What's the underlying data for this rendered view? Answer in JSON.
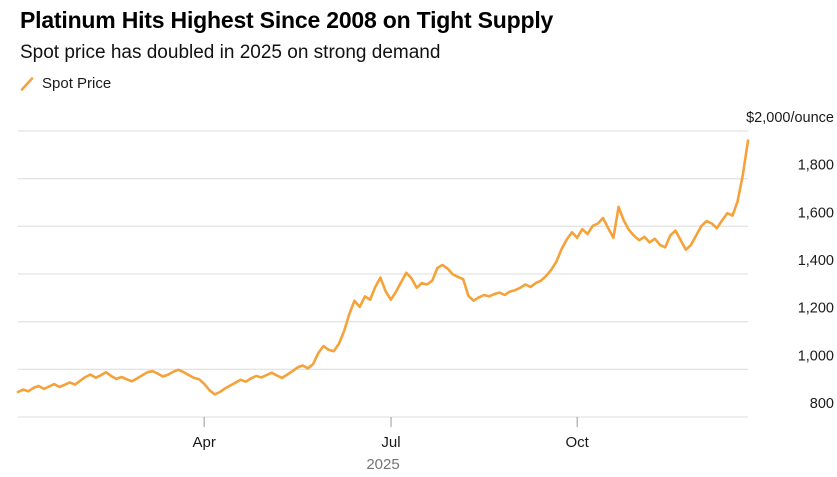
{
  "header": {
    "title": "Platinum Hits Highest Since 2008 on Tight Supply",
    "subtitle": "Spot price has doubled in 2025 on strong demand"
  },
  "legend": {
    "label": "Spot Price"
  },
  "colors": {
    "line": "#F5A23B",
    "grid": "#DCDCDC",
    "tick": "#999999",
    "axis_text": "#1A1A1A",
    "muted_text": "#767676"
  },
  "chart_data": {
    "type": "line",
    "title": "Platinum Hits Highest Since 2008 on Tight Supply",
    "subtitle": "Spot price has doubled in 2025 on strong demand",
    "unit": "$/ounce",
    "x_range": [
      "Jan 2025",
      "Dec 2025"
    ],
    "x_axis_label": "2025",
    "x_ticks": [
      {
        "label": "Apr",
        "pos": 0.255
      },
      {
        "label": "Jul",
        "pos": 0.511
      },
      {
        "label": "Oct",
        "pos": 0.766
      }
    ],
    "y_ticks": [
      800,
      1000,
      1200,
      1400,
      1600,
      1800,
      2000
    ],
    "y_tick_labels": [
      "800",
      "1,000",
      "1,200",
      "1,400",
      "1,600",
      "1,800",
      "$2,000/ounce"
    ],
    "ylim": [
      800,
      2000
    ],
    "grid": "horizontal",
    "legend_position": "top-left",
    "y_axis_side": "right",
    "series": [
      {
        "name": "Spot Price",
        "color": "#F5A23B",
        "values": [
          905,
          915,
          908,
          922,
          930,
          918,
          928,
          938,
          926,
          935,
          945,
          936,
          952,
          968,
          978,
          965,
          975,
          988,
          972,
          960,
          968,
          958,
          950,
          962,
          975,
          988,
          992,
          982,
          970,
          978,
          990,
          998,
          988,
          976,
          964,
          958,
          938,
          912,
          895,
          905,
          920,
          932,
          944,
          956,
          948,
          962,
          972,
          966,
          976,
          986,
          974,
          964,
          978,
          992,
          1008,
          1016,
          1004,
          1022,
          1068,
          1098,
          1082,
          1076,
          1108,
          1162,
          1232,
          1288,
          1262,
          1306,
          1292,
          1345,
          1385,
          1328,
          1292,
          1325,
          1365,
          1405,
          1382,
          1342,
          1362,
          1356,
          1372,
          1425,
          1438,
          1422,
          1398,
          1388,
          1378,
          1308,
          1288,
          1302,
          1312,
          1306,
          1316,
          1322,
          1312,
          1326,
          1332,
          1342,
          1356,
          1346,
          1362,
          1372,
          1392,
          1418,
          1452,
          1505,
          1545,
          1575,
          1552,
          1588,
          1568,
          1602,
          1612,
          1635,
          1592,
          1552,
          1682,
          1625,
          1585,
          1560,
          1542,
          1556,
          1532,
          1548,
          1522,
          1512,
          1562,
          1582,
          1542,
          1502,
          1522,
          1562,
          1602,
          1622,
          1612,
          1592,
          1625,
          1655,
          1645,
          1705,
          1815,
          1960
        ]
      }
    ]
  }
}
